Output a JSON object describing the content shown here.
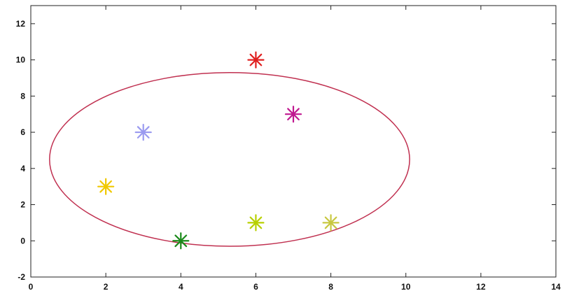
{
  "chart_data": {
    "type": "scatter",
    "title": "",
    "xlabel": "",
    "ylabel": "",
    "xlim": [
      0,
      14
    ],
    "ylim": [
      -2,
      13
    ],
    "x_ticks": [
      0,
      2,
      4,
      6,
      8,
      10,
      12,
      14
    ],
    "y_ticks": [
      -2,
      0,
      2,
      4,
      6,
      8,
      10,
      12
    ],
    "grid": false,
    "legend": "none",
    "marker": "asterisk",
    "points": [
      {
        "x": 2,
        "y": 3,
        "color": "#f0c800"
      },
      {
        "x": 3,
        "y": 6,
        "color": "#9a9af0"
      },
      {
        "x": 4,
        "y": 0,
        "color": "#1a8a1a"
      },
      {
        "x": 6,
        "y": 10,
        "color": "#e02020"
      },
      {
        "x": 6,
        "y": 1,
        "color": "#b8d000"
      },
      {
        "x": 7,
        "y": 7,
        "color": "#c01890"
      },
      {
        "x": 8,
        "y": 1,
        "color": "#c8c840"
      }
    ],
    "circle": {
      "cx": 5.3,
      "cy": 4.5,
      "r": 4.8,
      "color": "#c03050"
    }
  }
}
